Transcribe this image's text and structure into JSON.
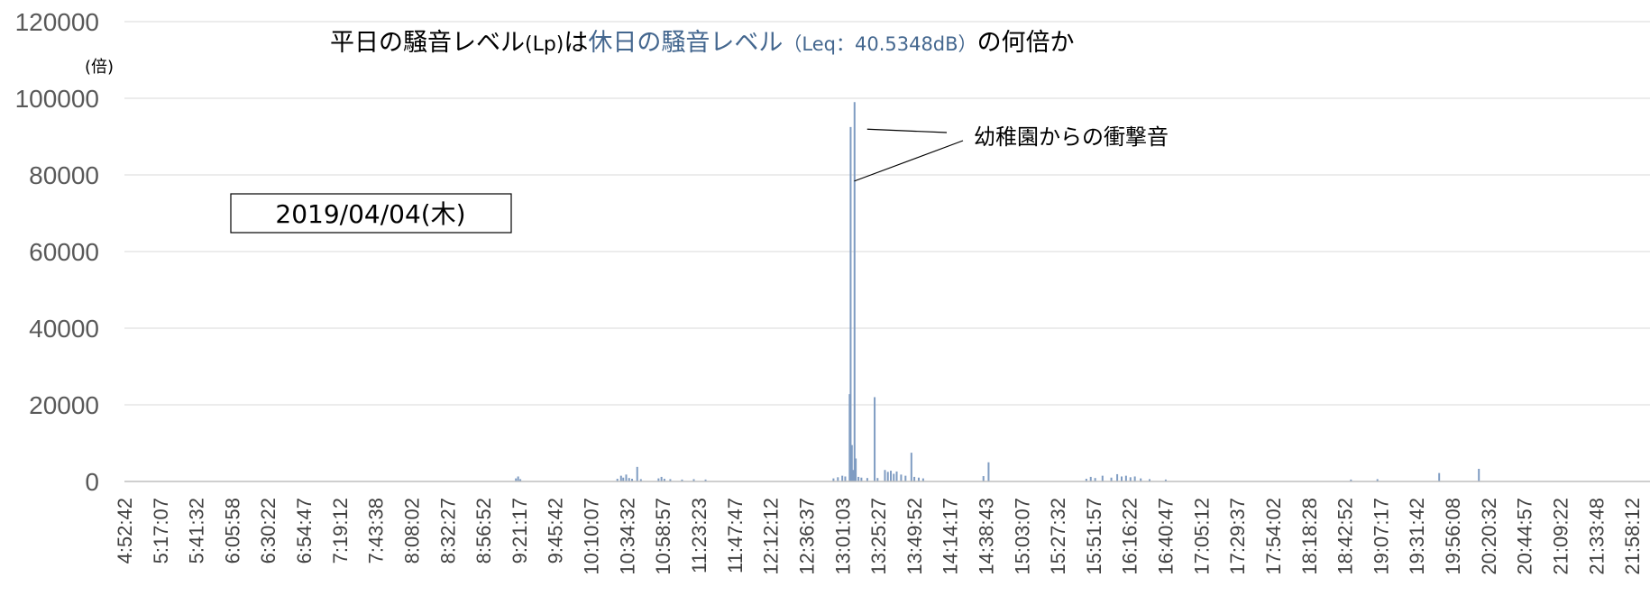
{
  "chart_data": {
    "type": "bar",
    "title_parts": [
      {
        "text": "平日の騒音レベル",
        "style": "main"
      },
      {
        "text": "(Lp)",
        "style": "small"
      },
      {
        "text": "は",
        "style": "main"
      },
      {
        "text": "休日の騒音レベル",
        "style": "hl"
      },
      {
        "text": "（Leq：40.5348dB）",
        "style": "hl-small"
      },
      {
        "text": "の何倍か",
        "style": "main"
      }
    ],
    "ylabel": "(倍)",
    "ylim": [
      0,
      120000
    ],
    "yticks": [
      "0",
      "20000",
      "40000",
      "60000",
      "80000",
      "100000",
      "120000"
    ],
    "xlim": [
      "4:52:42",
      "22:10:24"
    ],
    "xticks": [
      "4:52:42",
      "5:17:07",
      "5:41:32",
      "6:05:58",
      "6:30:22",
      "6:54:47",
      "7:19:12",
      "7:43:38",
      "8:08:02",
      "8:32:27",
      "8:56:52",
      "9:21:17",
      "9:45:42",
      "10:10:07",
      "10:34:32",
      "10:58:57",
      "11:23:23",
      "11:47:47",
      "12:12:12",
      "12:36:37",
      "13:01:03",
      "13:25:27",
      "13:49:52",
      "14:14:17",
      "14:38:43",
      "15:03:07",
      "15:27:32",
      "15:51:57",
      "16:16:22",
      "16:40:47",
      "17:05:12",
      "17:29:37",
      "17:54:02",
      "18:18:28",
      "18:42:52",
      "19:07:17",
      "19:31:42",
      "19:56:08",
      "20:20:32",
      "20:44:57",
      "21:09:22",
      "21:33:48",
      "21:58:12"
    ],
    "series": [
      {
        "color": "#7f9cc2",
        "points": [
          [
            "9:19:00",
            800
          ],
          [
            "9:20:30",
            1300
          ],
          [
            "9:22:00",
            600
          ],
          [
            "10:28:00",
            700
          ],
          [
            "10:30:30",
            1500
          ],
          [
            "10:32:00",
            1000
          ],
          [
            "10:34:00",
            1800
          ],
          [
            "10:36:00",
            900
          ],
          [
            "10:38:00",
            700
          ],
          [
            "10:41:30",
            3800
          ],
          [
            "10:44:00",
            600
          ],
          [
            "10:56:00",
            800
          ],
          [
            "10:58:00",
            1200
          ],
          [
            "11:00:00",
            700
          ],
          [
            "11:04:00",
            600
          ],
          [
            "11:12:00",
            500
          ],
          [
            "11:20:00",
            600
          ],
          [
            "11:28:00",
            500
          ],
          [
            "12:55:00",
            800
          ],
          [
            "12:58:00",
            1100
          ],
          [
            "13:01:00",
            1500
          ],
          [
            "13:03:00",
            1300
          ],
          [
            "13:06:00",
            22800
          ],
          [
            "13:06:40",
            92500
          ],
          [
            "13:07:30",
            9500
          ],
          [
            "13:08:30",
            3000
          ],
          [
            "13:09:20",
            99000
          ],
          [
            "13:10:10",
            6000
          ],
          [
            "13:12:00",
            1200
          ],
          [
            "13:14:00",
            1000
          ],
          [
            "13:18:00",
            900
          ],
          [
            "13:23:00",
            22000
          ],
          [
            "13:25:00",
            900
          ],
          [
            "13:30:00",
            3000
          ],
          [
            "13:32:00",
            2500
          ],
          [
            "13:34:00",
            2800
          ],
          [
            "13:36:00",
            2000
          ],
          [
            "13:38:00",
            2600
          ],
          [
            "13:41:00",
            1800
          ],
          [
            "13:44:00",
            1500
          ],
          [
            "13:48:00",
            7500
          ],
          [
            "13:50:00",
            1200
          ],
          [
            "13:53:00",
            1000
          ],
          [
            "13:56:00",
            800
          ],
          [
            "14:37:00",
            1400
          ],
          [
            "14:40:30",
            5000
          ],
          [
            "15:47:00",
            700
          ],
          [
            "15:50:00",
            1200
          ],
          [
            "15:53:00",
            900
          ],
          [
            "15:58:00",
            1500
          ],
          [
            "16:04:00",
            1000
          ],
          [
            "16:08:00",
            1900
          ],
          [
            "16:11:00",
            1300
          ],
          [
            "16:14:00",
            1500
          ],
          [
            "16:17:00",
            1100
          ],
          [
            "16:20:00",
            1300
          ],
          [
            "16:24:00",
            800
          ],
          [
            "16:30:00",
            600
          ],
          [
            "16:41:00",
            500
          ],
          [
            "18:47:00",
            500
          ],
          [
            "19:05:00",
            600
          ],
          [
            "19:47:00",
            2200
          ],
          [
            "20:14:00",
            3300
          ]
        ]
      }
    ],
    "annotation": {
      "text": "幼稚園からの衝撃音",
      "targets": [
        "13:06:40",
        "13:09:20"
      ]
    },
    "date_box": "2019/04/04(木)",
    "grid": "horizontal"
  }
}
